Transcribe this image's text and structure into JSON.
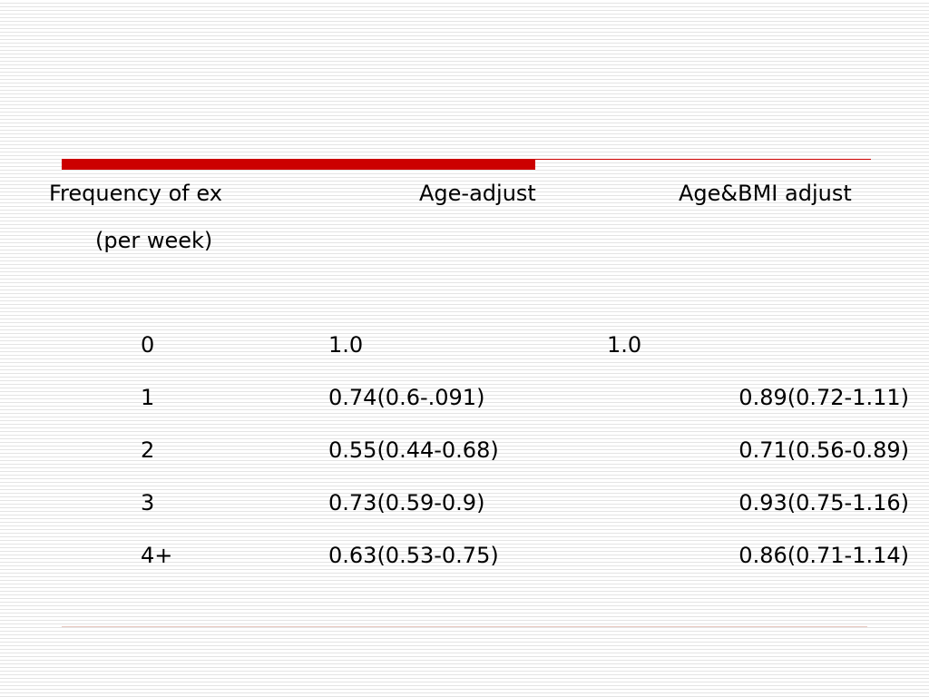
{
  "table": {
    "headers": {
      "frequency_line1": "Frequency of ex",
      "frequency_line2": "(per week)",
      "age_adjust": "Age-adjust",
      "age_bmi_adjust": "Age&BMI adjust"
    },
    "rows": [
      {
        "frequency": "0",
        "age_adjust": "1.0",
        "age_bmi_adjust": "1.0"
      },
      {
        "frequency": "1",
        "age_adjust": "0.74(0.6-.091)",
        "age_bmi_adjust": "0.89(0.72-1.11)"
      },
      {
        "frequency": "2",
        "age_adjust": "0.55(0.44-0.68)",
        "age_bmi_adjust": "0.71(0.56-0.89)"
      },
      {
        "frequency": "3",
        "age_adjust": "0.73(0.59-0.9)",
        "age_bmi_adjust": "0.93(0.75-1.16)"
      },
      {
        "frequency": "4+",
        "age_adjust": "0.63(0.53-0.75)",
        "age_bmi_adjust": "0.86(0.71-1.14)"
      }
    ]
  },
  "colors": {
    "accent": "#cc0000",
    "footer_rule": "#e8c8c0",
    "stripe": "#e4e4e4"
  }
}
